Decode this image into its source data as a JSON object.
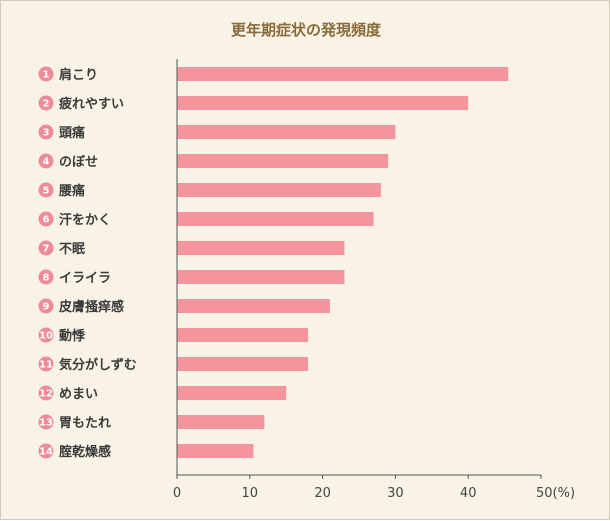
{
  "chart_data": {
    "type": "bar",
    "orientation": "horizontal",
    "title": "更年期症状の発現頻度",
    "categories": [
      "肩こり",
      "疲れやすい",
      "頭痛",
      "のぼせ",
      "腰痛",
      "汗をかく",
      "不眠",
      "イライラ",
      "皮膚掻痒感",
      "動悸",
      "気分がしずむ",
      "めまい",
      "胃もたれ",
      "腟乾燥感"
    ],
    "ranks": [
      "1",
      "2",
      "3",
      "4",
      "5",
      "6",
      "7",
      "8",
      "9",
      "10",
      "11",
      "12",
      "13",
      "14"
    ],
    "values": [
      45.5,
      40,
      30,
      29,
      28,
      27,
      23,
      23,
      21,
      18,
      18,
      15,
      12,
      10.5
    ],
    "xlim": [
      0,
      50
    ],
    "x_ticks": [
      "0",
      "10",
      "20",
      "30",
      "40",
      "50(%)"
    ],
    "x_tick_values": [
      0,
      10,
      20,
      30,
      40,
      50
    ],
    "bar_color": "#f4949c",
    "badge_color": "#ef8a98",
    "grid": false
  }
}
